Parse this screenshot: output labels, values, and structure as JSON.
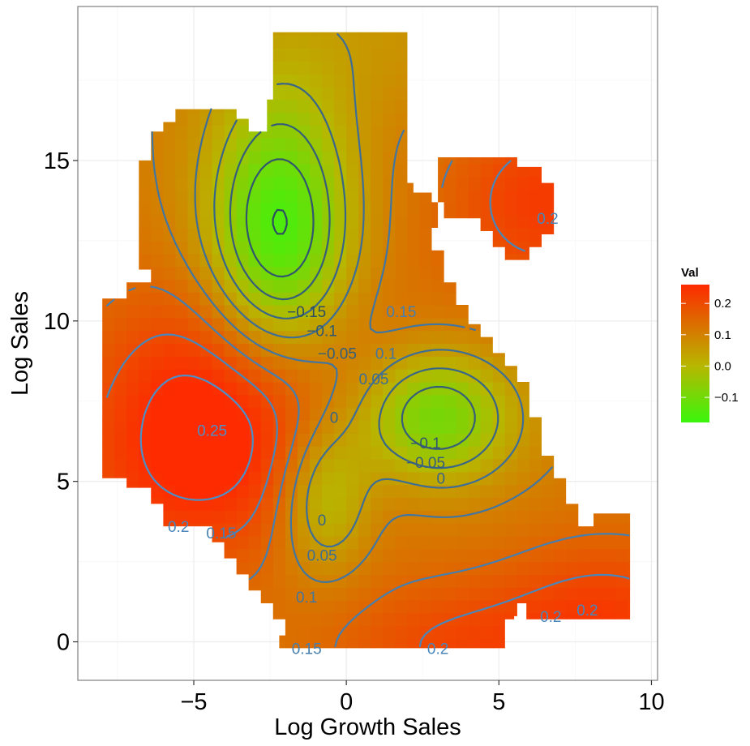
{
  "chart_data": {
    "type": "heatmap",
    "subtype": "filled raster with labelled contour lines",
    "title": "",
    "xlabel": "Log Growth Sales",
    "ylabel": "Log Sales",
    "xlim": [
      -8.8,
      10.2
    ],
    "ylim": [
      -1.2,
      19.8
    ],
    "x_ticks": [
      -5,
      0,
      5,
      10
    ],
    "x_tick_labels": [
      "−5",
      "0",
      "5",
      "10"
    ],
    "y_ticks": [
      0,
      5,
      10,
      15
    ],
    "y_tick_labels": [
      "0",
      "5",
      "10",
      "15"
    ],
    "grid": true,
    "legend": {
      "title": "Val",
      "position": "right",
      "range": [
        -0.18,
        0.26
      ],
      "ticks": [
        0.2,
        0.1,
        0.0,
        -0.1
      ],
      "tick_labels": [
        "0.2",
        "0.1",
        "0.0",
        "−0.1"
      ],
      "color_low": "#3af60c",
      "color_mid": "#b7b700",
      "color_high": "#fe2a00"
    },
    "colors": {
      "contour_low": "#2d4e62",
      "contour_high": "#4e8ec7"
    },
    "field_components": [
      {
        "cx": 0.0,
        "cy": 8.0,
        "sx": 30.0,
        "sy": 30.0,
        "amp": 0.115
      },
      {
        "cx": -3.5,
        "cy": 7.5,
        "sx": 3.2,
        "sy": 2.7,
        "amp": 0.18
      },
      {
        "cx": -2.2,
        "cy": 12.5,
        "sx": 1.7,
        "sy": 3.2,
        "amp": -0.29
      },
      {
        "cx": 2.8,
        "cy": 7.0,
        "sx": 1.9,
        "sy": 1.5,
        "amp": -0.23
      },
      {
        "cx": -0.7,
        "cy": 4.6,
        "sx": 1.1,
        "sy": 1.7,
        "amp": -0.16
      },
      {
        "cx": 6.5,
        "cy": 13.8,
        "sx": 2.3,
        "sy": 2.2,
        "amp": 0.12
      },
      {
        "cx": 8.8,
        "cy": 0.8,
        "sx": 2.6,
        "sy": 1.8,
        "amp": 0.11
      },
      {
        "cx": 3.5,
        "cy": -0.2,
        "sx": 3.0,
        "sy": 1.5,
        "amp": 0.09
      },
      {
        "cx": -6.0,
        "cy": 4.5,
        "sx": 2.8,
        "sy": 2.2,
        "amp": 0.06
      },
      {
        "cx": 1.0,
        "cy": 19.0,
        "sx": 3.5,
        "sy": 2.0,
        "amp": -0.04
      }
    ],
    "data_region": [
      [
        -8.0,
        5.1
      ],
      [
        -7.2,
        5.1
      ],
      [
        -7.2,
        4.8
      ],
      [
        -6.4,
        4.8
      ],
      [
        -6.4,
        4.3
      ],
      [
        -6.0,
        4.3
      ],
      [
        -6.0,
        3.6
      ],
      [
        -4.4,
        3.6
      ],
      [
        -4.4,
        3.1
      ],
      [
        -4.0,
        3.1
      ],
      [
        -4.0,
        2.6
      ],
      [
        -3.6,
        2.6
      ],
      [
        -3.6,
        2.1
      ],
      [
        -3.2,
        2.1
      ],
      [
        -3.2,
        1.6
      ],
      [
        -2.8,
        1.6
      ],
      [
        -2.8,
        1.2
      ],
      [
        -2.4,
        1.2
      ],
      [
        -2.4,
        0.7
      ],
      [
        -2.0,
        0.7
      ],
      [
        -2.0,
        0.2
      ],
      [
        -2.2,
        0.2
      ],
      [
        -2.2,
        -0.2
      ],
      [
        0.0,
        -0.2
      ],
      [
        5.2,
        -0.2
      ],
      [
        5.2,
        0.7
      ],
      [
        5.5,
        0.7
      ],
      [
        5.5,
        0.8
      ],
      [
        5.6,
        0.8
      ],
      [
        5.6,
        1.2
      ],
      [
        5.9,
        1.2
      ],
      [
        5.9,
        0.7
      ],
      [
        9.3,
        0.7
      ],
      [
        9.3,
        4.0
      ],
      [
        8.1,
        4.0
      ],
      [
        8.1,
        3.6
      ],
      [
        7.6,
        3.6
      ],
      [
        7.6,
        4.3
      ],
      [
        7.2,
        4.3
      ],
      [
        7.2,
        5.1
      ],
      [
        6.8,
        5.1
      ],
      [
        6.8,
        5.8
      ],
      [
        6.4,
        5.8
      ],
      [
        6.4,
        7.0
      ],
      [
        6.0,
        7.0
      ],
      [
        6.0,
        8.1
      ],
      [
        5.6,
        8.1
      ],
      [
        5.6,
        8.6
      ],
      [
        5.2,
        8.6
      ],
      [
        5.2,
        9.0
      ],
      [
        4.8,
        9.0
      ],
      [
        4.8,
        9.5
      ],
      [
        4.4,
        9.5
      ],
      [
        4.4,
        9.9
      ],
      [
        4.0,
        9.9
      ],
      [
        4.0,
        10.5
      ],
      [
        3.6,
        10.5
      ],
      [
        3.6,
        11.2
      ],
      [
        3.2,
        11.2
      ],
      [
        3.2,
        12.2
      ],
      [
        2.8,
        12.2
      ],
      [
        2.8,
        12.9
      ],
      [
        3.0,
        12.9
      ],
      [
        3.0,
        15.1
      ],
      [
        5.6,
        15.1
      ],
      [
        5.6,
        14.8
      ],
      [
        6.4,
        14.8
      ],
      [
        6.4,
        14.3
      ],
      [
        6.8,
        14.3
      ],
      [
        6.8,
        14.0
      ],
      [
        6.8,
        12.7
      ],
      [
        6.4,
        12.7
      ],
      [
        6.4,
        12.3
      ],
      [
        6.0,
        12.3
      ],
      [
        6.0,
        11.9
      ],
      [
        5.2,
        11.9
      ],
      [
        5.2,
        12.3
      ],
      [
        4.8,
        12.3
      ],
      [
        4.8,
        12.8
      ],
      [
        4.4,
        12.8
      ],
      [
        4.4,
        13.2
      ],
      [
        3.2,
        13.2
      ],
      [
        3.2,
        13.7
      ],
      [
        2.8,
        13.7
      ],
      [
        2.8,
        14.0
      ],
      [
        2.2,
        14.0
      ],
      [
        2.2,
        14.3
      ],
      [
        2.0,
        14.3
      ],
      [
        2.0,
        19.0
      ],
      [
        -2.4,
        19.0
      ],
      [
        -2.4,
        16.9
      ],
      [
        -2.6,
        16.9
      ],
      [
        -2.6,
        15.9
      ],
      [
        -3.2,
        15.9
      ],
      [
        -3.2,
        16.3
      ],
      [
        -3.6,
        16.3
      ],
      [
        -3.6,
        16.6
      ],
      [
        -5.6,
        16.6
      ],
      [
        -5.6,
        16.2
      ],
      [
        -6.0,
        16.2
      ],
      [
        -6.0,
        15.9
      ],
      [
        -6.4,
        15.9
      ],
      [
        -6.4,
        15.0
      ],
      [
        -6.8,
        15.0
      ],
      [
        -6.8,
        11.6
      ],
      [
        -6.4,
        11.6
      ],
      [
        -6.4,
        11.2
      ],
      [
        -7.2,
        11.2
      ],
      [
        -7.2,
        10.7
      ],
      [
        -8.0,
        10.7
      ],
      [
        -8.0,
        5.1
      ]
    ],
    "contour_levels": [
      -0.15,
      -0.1,
      -0.05,
      0,
      0.05,
      0.1,
      0.15,
      0.2,
      0.25
    ],
    "contour_labels": [
      {
        "text": "−0.15",
        "x": -1.3,
        "y": 10.3,
        "value": -0.15
      },
      {
        "text": "−0.1",
        "x": -0.8,
        "y": 9.7,
        "value": -0.1
      },
      {
        "text": "−0.05",
        "x": -0.3,
        "y": 9.0,
        "value": -0.05
      },
      {
        "text": "0.1",
        "x": 1.3,
        "y": 9.0,
        "value": 0.1
      },
      {
        "text": "0.05",
        "x": 0.9,
        "y": 8.2,
        "value": 0.05
      },
      {
        "text": "0.15",
        "x": 1.8,
        "y": 10.3,
        "value": 0.15
      },
      {
        "text": "0.2",
        "x": 6.6,
        "y": 13.2,
        "value": 0.2
      },
      {
        "text": "0",
        "x": -0.4,
        "y": 7.0,
        "value": 0
      },
      {
        "text": "0.25",
        "x": -4.4,
        "y": 6.6,
        "value": 0.25
      },
      {
        "text": "−0.1",
        "x": 2.6,
        "y": 6.2,
        "value": -0.1
      },
      {
        "text": "−0.05",
        "x": 2.6,
        "y": 5.6,
        "value": -0.05
      },
      {
        "text": "0",
        "x": 3.1,
        "y": 5.1,
        "value": 0
      },
      {
        "text": "0",
        "x": -0.8,
        "y": 3.8,
        "value": 0
      },
      {
        "text": "0.2",
        "x": -5.5,
        "y": 3.6,
        "value": 0.2
      },
      {
        "text": "0.15",
        "x": -4.1,
        "y": 3.4,
        "value": 0.15
      },
      {
        "text": "0.05",
        "x": -0.8,
        "y": 2.7,
        "value": 0.05
      },
      {
        "text": "0.1",
        "x": -1.3,
        "y": 1.4,
        "value": 0.1
      },
      {
        "text": "0.15",
        "x": -1.3,
        "y": -0.2,
        "value": 0.15
      },
      {
        "text": "0.2",
        "x": 3.0,
        "y": -0.2,
        "value": 0.2
      },
      {
        "text": "0.2",
        "x": 6.7,
        "y": 0.8,
        "value": 0.2
      },
      {
        "text": "0.2",
        "x": 7.9,
        "y": 1.0,
        "value": 0.2
      }
    ]
  }
}
